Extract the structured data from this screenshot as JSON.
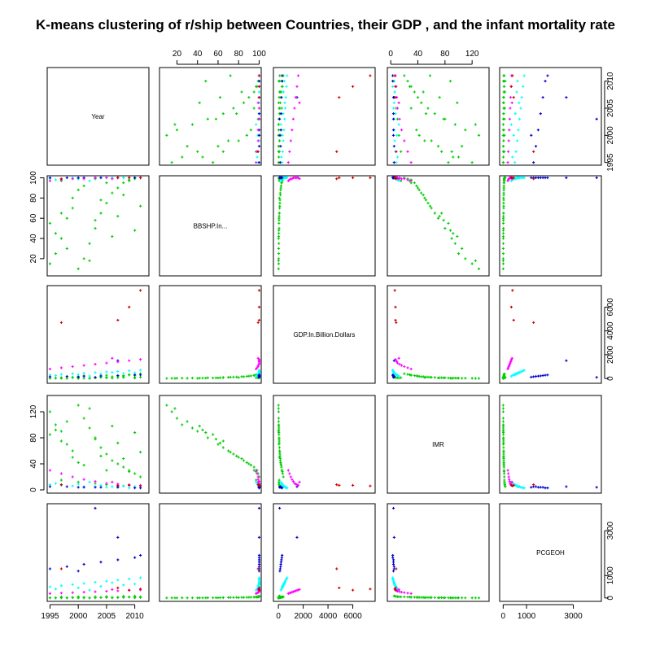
{
  "chart_data": {
    "type": "scatter",
    "title": "K-means clustering of r/ship between Countries, their GDP , and the infant mortality rate",
    "variables": [
      "Year",
      "BBSHP.In...",
      "GDP.In.Billion.Dollars",
      "IMR",
      "PCGEOH"
    ],
    "ranges": [
      [
        1994.5,
        2012.5
      ],
      [
        3,
        102
      ],
      [
        -400,
        7800
      ],
      [
        -5,
        145
      ],
      [
        -150,
        4200
      ]
    ],
    "ticks": [
      [
        1995,
        2000,
        2005,
        2010
      ],
      [
        20,
        40,
        60,
        80,
        100
      ],
      [
        0,
        2000,
        4000,
        6000
      ],
      [
        0,
        40,
        80,
        120
      ],
      [
        0,
        1000,
        3000
      ]
    ],
    "cluster_colors": [
      "#00cd00",
      "#00ffff",
      "#0000cd",
      "#ff00ff",
      "#cd0000"
    ],
    "series": [
      {
        "cluster": 1,
        "color": "#00cd00",
        "points": [
          [
            1995,
            15,
            20,
            120,
            5
          ],
          [
            1996,
            25,
            30,
            100,
            8
          ],
          [
            1997,
            40,
            15,
            90,
            6
          ],
          [
            1998,
            60,
            50,
            70,
            10
          ],
          [
            1999,
            80,
            80,
            50,
            15
          ],
          [
            2000,
            10,
            10,
            130,
            3
          ],
          [
            2001,
            20,
            25,
            110,
            4
          ],
          [
            2002,
            35,
            40,
            95,
            7
          ],
          [
            2003,
            50,
            60,
            80,
            12
          ],
          [
            2004,
            65,
            90,
            65,
            18
          ],
          [
            2005,
            75,
            120,
            55,
            20
          ],
          [
            2006,
            85,
            150,
            45,
            25
          ],
          [
            2007,
            90,
            200,
            40,
            30
          ],
          [
            2008,
            95,
            250,
            35,
            35
          ],
          [
            2009,
            98,
            300,
            30,
            40
          ],
          [
            2010,
            99,
            350,
            25,
            45
          ],
          [
            2011,
            100,
            400,
            20,
            50
          ],
          [
            1995,
            55,
            45,
            85,
            9
          ],
          [
            1996,
            45,
            35,
            92,
            7
          ],
          [
            1997,
            65,
            70,
            75,
            14
          ],
          [
            1998,
            30,
            20,
            105,
            5
          ],
          [
            1999,
            70,
            100,
            60,
            22
          ],
          [
            2000,
            88,
            180,
            42,
            28
          ],
          [
            2001,
            92,
            220,
            38,
            32
          ],
          [
            2002,
            18,
            12,
            125,
            4
          ],
          [
            2003,
            58,
            55,
            78,
            11
          ],
          [
            2004,
            78,
            130,
            52,
            24
          ],
          [
            2005,
            95,
            270,
            30,
            38
          ],
          [
            2006,
            42,
            30,
            98,
            6
          ],
          [
            2007,
            62,
            65,
            72,
            13
          ],
          [
            2008,
            83,
            160,
            48,
            26
          ],
          [
            2009,
            97,
            320,
            28,
            42
          ],
          [
            2010,
            48,
            38,
            88,
            8
          ],
          [
            2011,
            72,
            110,
            58,
            21
          ],
          [
            2003,
            99,
            80,
            10,
            60
          ],
          [
            2005,
            100,
            60,
            8,
            70
          ],
          [
            2008,
            100,
            90,
            6,
            80
          ],
          [
            2000,
            99,
            40,
            12,
            55
          ],
          [
            1997,
            97,
            70,
            15,
            50
          ],
          [
            2010,
            100,
            100,
            5,
            90
          ]
        ]
      },
      {
        "cluster": 2,
        "color": "#00ffff",
        "points": [
          [
            1995,
            99,
            300,
            8,
            500
          ],
          [
            1997,
            99,
            350,
            7,
            550
          ],
          [
            1999,
            100,
            400,
            6,
            600
          ],
          [
            2001,
            100,
            450,
            5,
            650
          ],
          [
            2003,
            100,
            500,
            5,
            700
          ],
          [
            2005,
            100,
            550,
            4,
            750
          ],
          [
            2007,
            100,
            600,
            4,
            800
          ],
          [
            2009,
            100,
            650,
            3,
            850
          ],
          [
            2011,
            100,
            700,
            3,
            900
          ],
          [
            1996,
            98,
            250,
            10,
            400
          ],
          [
            2000,
            99,
            320,
            9,
            450
          ],
          [
            2004,
            100,
            380,
            7,
            520
          ],
          [
            2008,
            100,
            420,
            6,
            580
          ],
          [
            2010,
            100,
            480,
            5,
            620
          ],
          [
            2002,
            97,
            200,
            12,
            350
          ],
          [
            2006,
            100,
            520,
            5,
            680
          ]
        ]
      },
      {
        "cluster": 3,
        "color": "#0000cd",
        "points": [
          [
            1995,
            100,
            150,
            5,
            1300
          ],
          [
            1998,
            100,
            180,
            5,
            1400
          ],
          [
            2001,
            100,
            200,
            4,
            1500
          ],
          [
            2004,
            100,
            220,
            4,
            1600
          ],
          [
            2007,
            100,
            250,
            4,
            1700
          ],
          [
            2010,
            100,
            280,
            3,
            1800
          ],
          [
            2003,
            100,
            100,
            4,
            4000
          ],
          [
            2007,
            100,
            1500,
            5,
            2700
          ],
          [
            2000,
            100,
            120,
            4,
            1200
          ],
          [
            2011,
            100,
            300,
            3,
            1900
          ]
        ]
      },
      {
        "cluster": 4,
        "color": "#ff00ff",
        "points": [
          [
            1995,
            97,
            800,
            30,
            200
          ],
          [
            1997,
            98,
            900,
            25,
            220
          ],
          [
            1999,
            99,
            1000,
            20,
            240
          ],
          [
            2001,
            99,
            1100,
            16,
            260
          ],
          [
            2003,
            100,
            1200,
            13,
            280
          ],
          [
            2005,
            100,
            1300,
            10,
            300
          ],
          [
            2007,
            100,
            1400,
            9,
            320
          ],
          [
            2009,
            100,
            1500,
            8,
            340
          ],
          [
            2011,
            100,
            1600,
            7,
            360
          ],
          [
            2006,
            99,
            1700,
            12,
            380
          ]
        ]
      },
      {
        "cluster": 5,
        "color": "#cd0000",
        "points": [
          [
            1997,
            99,
            4700,
            8,
            1300
          ],
          [
            2007,
            100,
            4900,
            7,
            450
          ],
          [
            2009,
            100,
            6000,
            7,
            350
          ],
          [
            2011,
            100,
            7400,
            6,
            400
          ]
        ]
      }
    ]
  }
}
